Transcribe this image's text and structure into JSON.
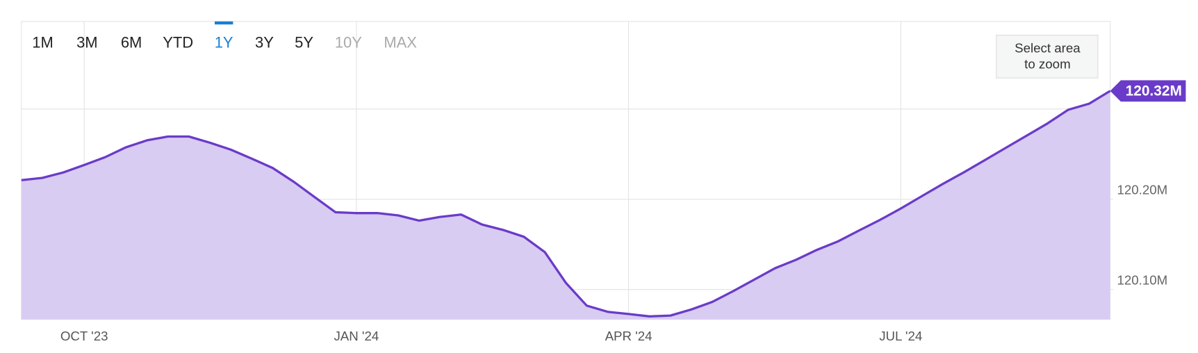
{
  "chart_data": {
    "type": "line",
    "range_buttons": [
      {
        "label": "1M",
        "state": "enabled"
      },
      {
        "label": "3M",
        "state": "enabled"
      },
      {
        "label": "6M",
        "state": "enabled"
      },
      {
        "label": "YTD",
        "state": "enabled"
      },
      {
        "label": "1Y",
        "state": "selected"
      },
      {
        "label": "3Y",
        "state": "enabled"
      },
      {
        "label": "5Y",
        "state": "enabled"
      },
      {
        "label": "10Y",
        "state": "disabled"
      },
      {
        "label": "MAX",
        "state": "disabled"
      }
    ],
    "zoom_button": [
      "Select area",
      "to zoom"
    ],
    "categories": [
      null,
      null,
      null,
      "OCT '23",
      null,
      null,
      null,
      null,
      null,
      null,
      null,
      null,
      null,
      null,
      null,
      null,
      "JAN '24",
      null,
      null,
      null,
      null,
      null,
      null,
      null,
      null,
      null,
      null,
      null,
      null,
      "APR '24",
      null,
      null,
      null,
      null,
      null,
      null,
      null,
      null,
      null,
      null,
      null,
      null,
      "JUL '24",
      null,
      null,
      null,
      null,
      null,
      null,
      null,
      null,
      null,
      null
    ],
    "series": [
      {
        "color": "#6a3bc8",
        "area_color": "#d8ccf2",
        "values": [
          120.2212,
          120.2237,
          120.2297,
          120.238,
          120.2466,
          120.2576,
          120.2653,
          120.2695,
          120.2695,
          120.2627,
          120.255,
          120.245,
          120.2347,
          120.2195,
          120.2025,
          120.1856,
          120.1847,
          120.1847,
          120.1822,
          120.1763,
          120.1805,
          120.1831,
          120.172,
          120.1661,
          120.1585,
          120.1415,
          120.1076,
          120.0822,
          120.0754,
          120.0729,
          120.0703,
          120.0712,
          120.078,
          120.0864,
          120.0983,
          120.111,
          120.1237,
          120.133,
          120.144,
          120.1534,
          120.1653,
          120.1771,
          120.1898,
          120.2034,
          120.2169,
          120.2297,
          120.2432,
          120.2568,
          120.2703,
          120.2839,
          120.2992,
          120.3059,
          120.32
        ]
      }
    ],
    "current_value": {
      "value": 120.32,
      "label": "120.32M"
    },
    "ylim": [
      120.067,
      120.397
    ],
    "yticks": [
      {
        "value": 120.1,
        "label": "120.10M"
      },
      {
        "value": 120.2,
        "label": "120.20M"
      }
    ],
    "grid_lines": [
      120.1,
      120.2,
      120.3
    ],
    "grid": true
  }
}
